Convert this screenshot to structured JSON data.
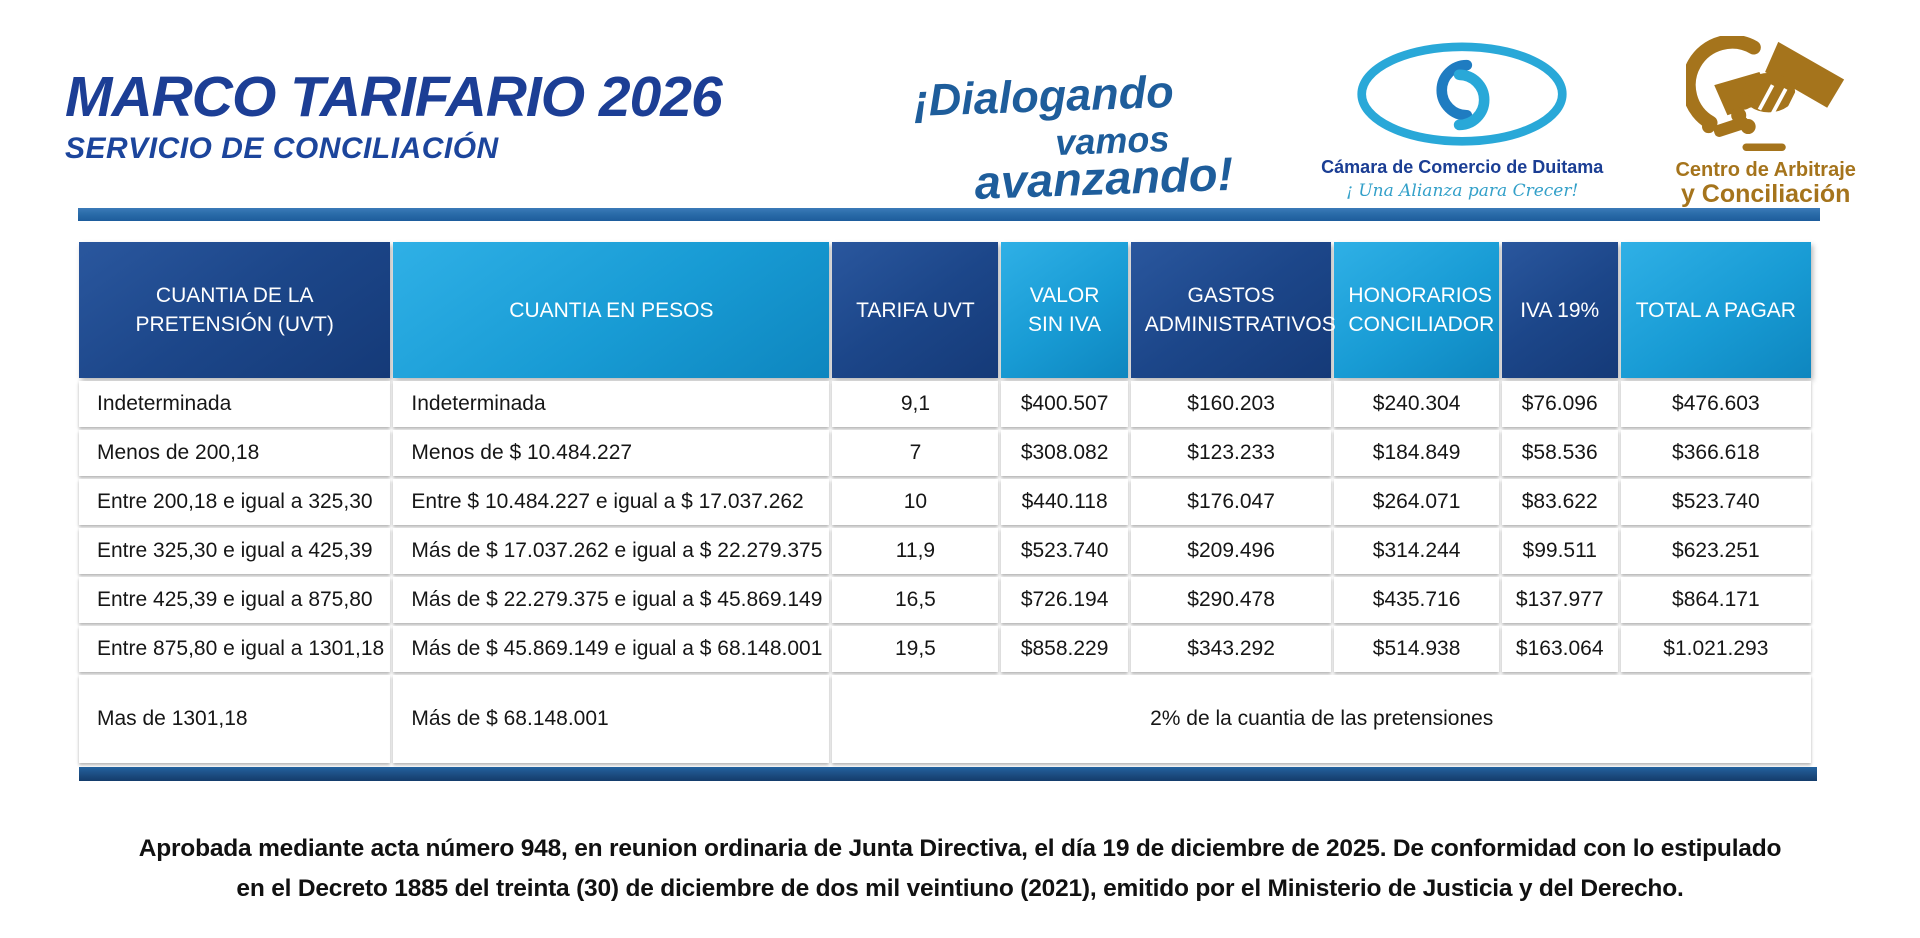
{
  "header": {
    "title": "MARCO TARIFARIO 2026",
    "subtitle": "SERVICIO DE CONCILIACIÓN",
    "slogan": {
      "line1": "¡Dialogando",
      "line2": "vamos",
      "line3": "avanzando!"
    },
    "ccd_logo": {
      "name": "Cámara de Comercio de Duitama",
      "tagline": "¡ Una Alianza para Crecer!"
    },
    "arbitration_logo": {
      "line1": "Centro de Arbitraje",
      "line2": "y Conciliación"
    }
  },
  "colors": {
    "title_blue": "#1c3e95",
    "slogan_blue": "#1e5d9b",
    "header_dark_blue": "#1c4689",
    "header_light_blue": "#189bd4",
    "divider_blue": "#2a6ca9",
    "bottom_bar_navy": "#1b4a7e",
    "gold": "#a5741c",
    "ccd_light_blue": "#29a8d8"
  },
  "table": {
    "columns": [
      {
        "label": "CUANTIA DE LA PRETENSIÓN (UVT)",
        "tone": "dark"
      },
      {
        "label": "CUANTIA EN PESOS",
        "tone": "light"
      },
      {
        "label": "TARIFA UVT",
        "tone": "dark"
      },
      {
        "label": "VALOR SIN IVA",
        "tone": "light"
      },
      {
        "label": "GASTOS ADMINISTRATIVOS",
        "tone": "dark"
      },
      {
        "label": "HONORARIOS CONCILIADOR",
        "tone": "light"
      },
      {
        "label": "IVA 19%",
        "tone": "dark"
      },
      {
        "label": "TOTAL A PAGAR",
        "tone": "light"
      }
    ],
    "rows": [
      [
        "Indeterminada",
        "Indeterminada",
        "9,1",
        "$400.507",
        "$160.203",
        "$240.304",
        "$76.096",
        "$476.603"
      ],
      [
        "Menos de 200,18",
        "Menos de $ 10.484.227",
        "7",
        "$308.082",
        "$123.233",
        "$184.849",
        "$58.536",
        "$366.618"
      ],
      [
        "Entre 200,18 e igual a 325,30",
        "Entre $ 10.484.227 e igual a $ 17.037.262",
        "10",
        "$440.118",
        "$176.047",
        "$264.071",
        "$83.622",
        "$523.740"
      ],
      [
        "Entre 325,30 e igual a 425,39",
        "Más de $ 17.037.262 e igual a $ 22.279.375",
        "11,9",
        "$523.740",
        "$209.496",
        "$314.244",
        "$99.511",
        "$623.251"
      ],
      [
        "Entre 425,39 e igual a 875,80",
        "Más de $ 22.279.375 e igual a $ 45.869.149",
        "16,5",
        "$726.194",
        "$290.478",
        "$435.716",
        "$137.977",
        "$864.171"
      ],
      [
        "Entre 875,80 e igual a 1301,18",
        "Más de $ 45.869.149 e igual a $ 68.148.001",
        "19,5",
        "$858.229",
        "$343.292",
        "$514.938",
        "$163.064",
        "$1.021.293"
      ]
    ],
    "last_row": {
      "uvt": "Mas de 1301,18",
      "pesos": "Más de $ 68.148.001",
      "merged": "2% de la cuantia de las pretensiones"
    }
  },
  "footer": {
    "line1": "Aprobada mediante acta número 948, en reunion ordinaria de Junta Directiva, el día 19 de diciembre de 2025. De conformidad con lo estipulado",
    "line2": "en el Decreto 1885 del treinta (30) de diciembre de dos mil veintiuno (2021), emitido por el Ministerio de Justicia y del Derecho."
  }
}
